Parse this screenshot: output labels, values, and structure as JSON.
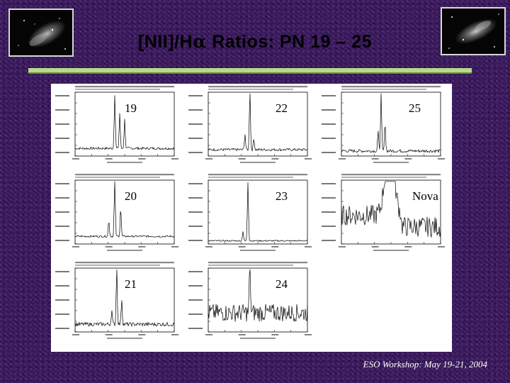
{
  "slide": {
    "title_prefix": "[NII]/H",
    "title_alpha": "α",
    "title_suffix": " Ratios: PN 19 – 25",
    "footer": "ESO Workshop: May 19-21, 2004"
  },
  "images": {
    "left": "galaxy-image",
    "right": "galaxy-image"
  },
  "panels": [
    {
      "label": "19"
    },
    {
      "label": "22"
    },
    {
      "label": "25"
    },
    {
      "label": "20"
    },
    {
      "label": "23"
    },
    {
      "label": "Nova"
    },
    {
      "label": "21"
    },
    {
      "label": "24"
    }
  ]
}
